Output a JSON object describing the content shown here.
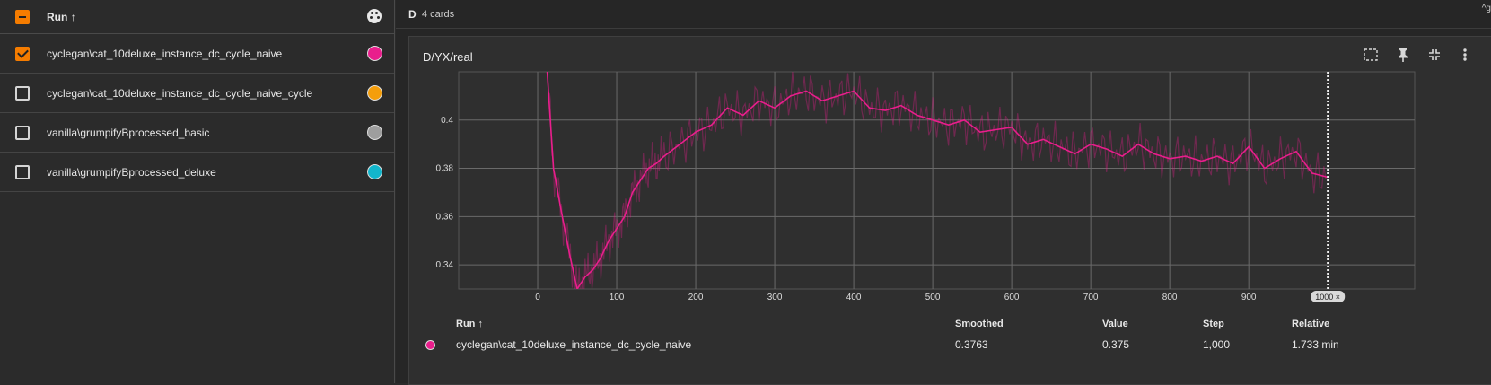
{
  "sidebar": {
    "header_label": "Run ↑",
    "runs": [
      {
        "label": "cyclegan\\cat_10deluxe_instance_dc_cycle_naive",
        "checked": true,
        "color": "#e91e8c"
      },
      {
        "label": "cyclegan\\cat_10deluxe_instance_dc_cycle_naive_cycle",
        "checked": false,
        "color": "#f59e0b"
      },
      {
        "label": "vanilla\\grumpifyBprocessed_basic",
        "checked": false,
        "color": "#9e9e9e"
      },
      {
        "label": "vanilla\\grumpifyBprocessed_deluxe",
        "checked": false,
        "color": "#12b5cb"
      }
    ]
  },
  "group": {
    "letter": "D",
    "count": "4 cards",
    "corner": "^g"
  },
  "card": {
    "title": "D/YX/real",
    "tools": [
      "fullscreen-icon",
      "pin-icon",
      "collapse-icon",
      "more-vert-icon"
    ],
    "x_pill": "1000 ×",
    "x_ticks": [
      "0",
      "100",
      "200",
      "300",
      "400",
      "500",
      "600",
      "700",
      "800",
      "900"
    ],
    "y_ticks": [
      "0.34",
      "0.36",
      "0.38",
      "0.4"
    ],
    "table": {
      "headers": {
        "run": "Run ↑",
        "smoothed": "Smoothed",
        "value": "Value",
        "step": "Step",
        "relative": "Relative"
      },
      "row": {
        "run": "cyclegan\\cat_10deluxe_instance_dc_cycle_naive",
        "smoothed": "0.3763",
        "value": "0.375",
        "step": "1,000",
        "relative": "1.733 min"
      }
    }
  },
  "chart_data": {
    "type": "line",
    "title": "D/YX/real",
    "xlim": [
      -100,
      1110
    ],
    "ylim": [
      0.33,
      0.42
    ],
    "grid": true,
    "x_ticks": [
      0,
      100,
      200,
      300,
      400,
      500,
      600,
      700,
      800,
      900
    ],
    "y_ticks": [
      0.34,
      0.36,
      0.38,
      0.4
    ],
    "series": [
      {
        "name": "cyclegan\\cat_10deluxe_instance_dc_cycle_naive",
        "color": "#e91e8c",
        "x": [
          12,
          20,
          30,
          40,
          50,
          60,
          70,
          80,
          90,
          100,
          110,
          120,
          130,
          140,
          150,
          160,
          180,
          200,
          220,
          240,
          260,
          280,
          300,
          320,
          340,
          360,
          380,
          400,
          420,
          440,
          460,
          480,
          500,
          520,
          540,
          560,
          580,
          600,
          620,
          640,
          660,
          680,
          700,
          720,
          740,
          760,
          780,
          800,
          820,
          840,
          860,
          880,
          900,
          920,
          940,
          960,
          980,
          1000
        ],
        "y": [
          0.42,
          0.38,
          0.362,
          0.345,
          0.33,
          0.335,
          0.338,
          0.343,
          0.35,
          0.355,
          0.36,
          0.37,
          0.375,
          0.38,
          0.382,
          0.385,
          0.39,
          0.395,
          0.398,
          0.405,
          0.402,
          0.408,
          0.405,
          0.41,
          0.412,
          0.408,
          0.41,
          0.412,
          0.405,
          0.404,
          0.406,
          0.402,
          0.4,
          0.398,
          0.4,
          0.395,
          0.396,
          0.397,
          0.39,
          0.392,
          0.389,
          0.386,
          0.39,
          0.388,
          0.385,
          0.39,
          0.386,
          0.384,
          0.385,
          0.383,
          0.385,
          0.382,
          0.389,
          0.38,
          0.384,
          0.387,
          0.378,
          0.3763
        ]
      }
    ]
  }
}
